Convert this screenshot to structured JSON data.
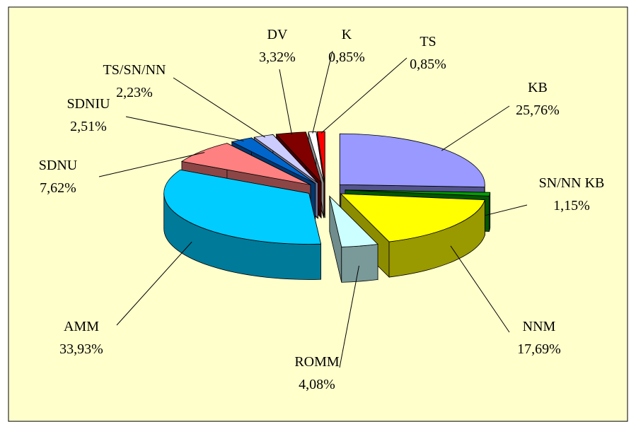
{
  "chart_data": {
    "type": "pie3d",
    "categories": [
      "KB",
      "SN/NN KB",
      "NNM",
      "ROMM",
      "AMM",
      "SDNU",
      "SDNIU",
      "TS/SN/NN",
      "DV",
      "K",
      "TS"
    ],
    "values": [
      25.76,
      1.15,
      17.69,
      4.08,
      33.93,
      7.62,
      2.51,
      2.23,
      3.32,
      0.85,
      0.85
    ],
    "value_labels": [
      "25,76%",
      "1,15%",
      "17,69%",
      "4,08%",
      "33,93%",
      "7,62%",
      "2,51%",
      "2,23%",
      "3,32%",
      "0,85%",
      "0,85%"
    ],
    "colors": [
      "#9999ff",
      "#00a000",
      "#ffff00",
      "#ccffff",
      "#00ccff",
      "#ff8080",
      "#0066cc",
      "#ccccff",
      "#800000",
      "#ffffff",
      "#ff0000"
    ]
  }
}
